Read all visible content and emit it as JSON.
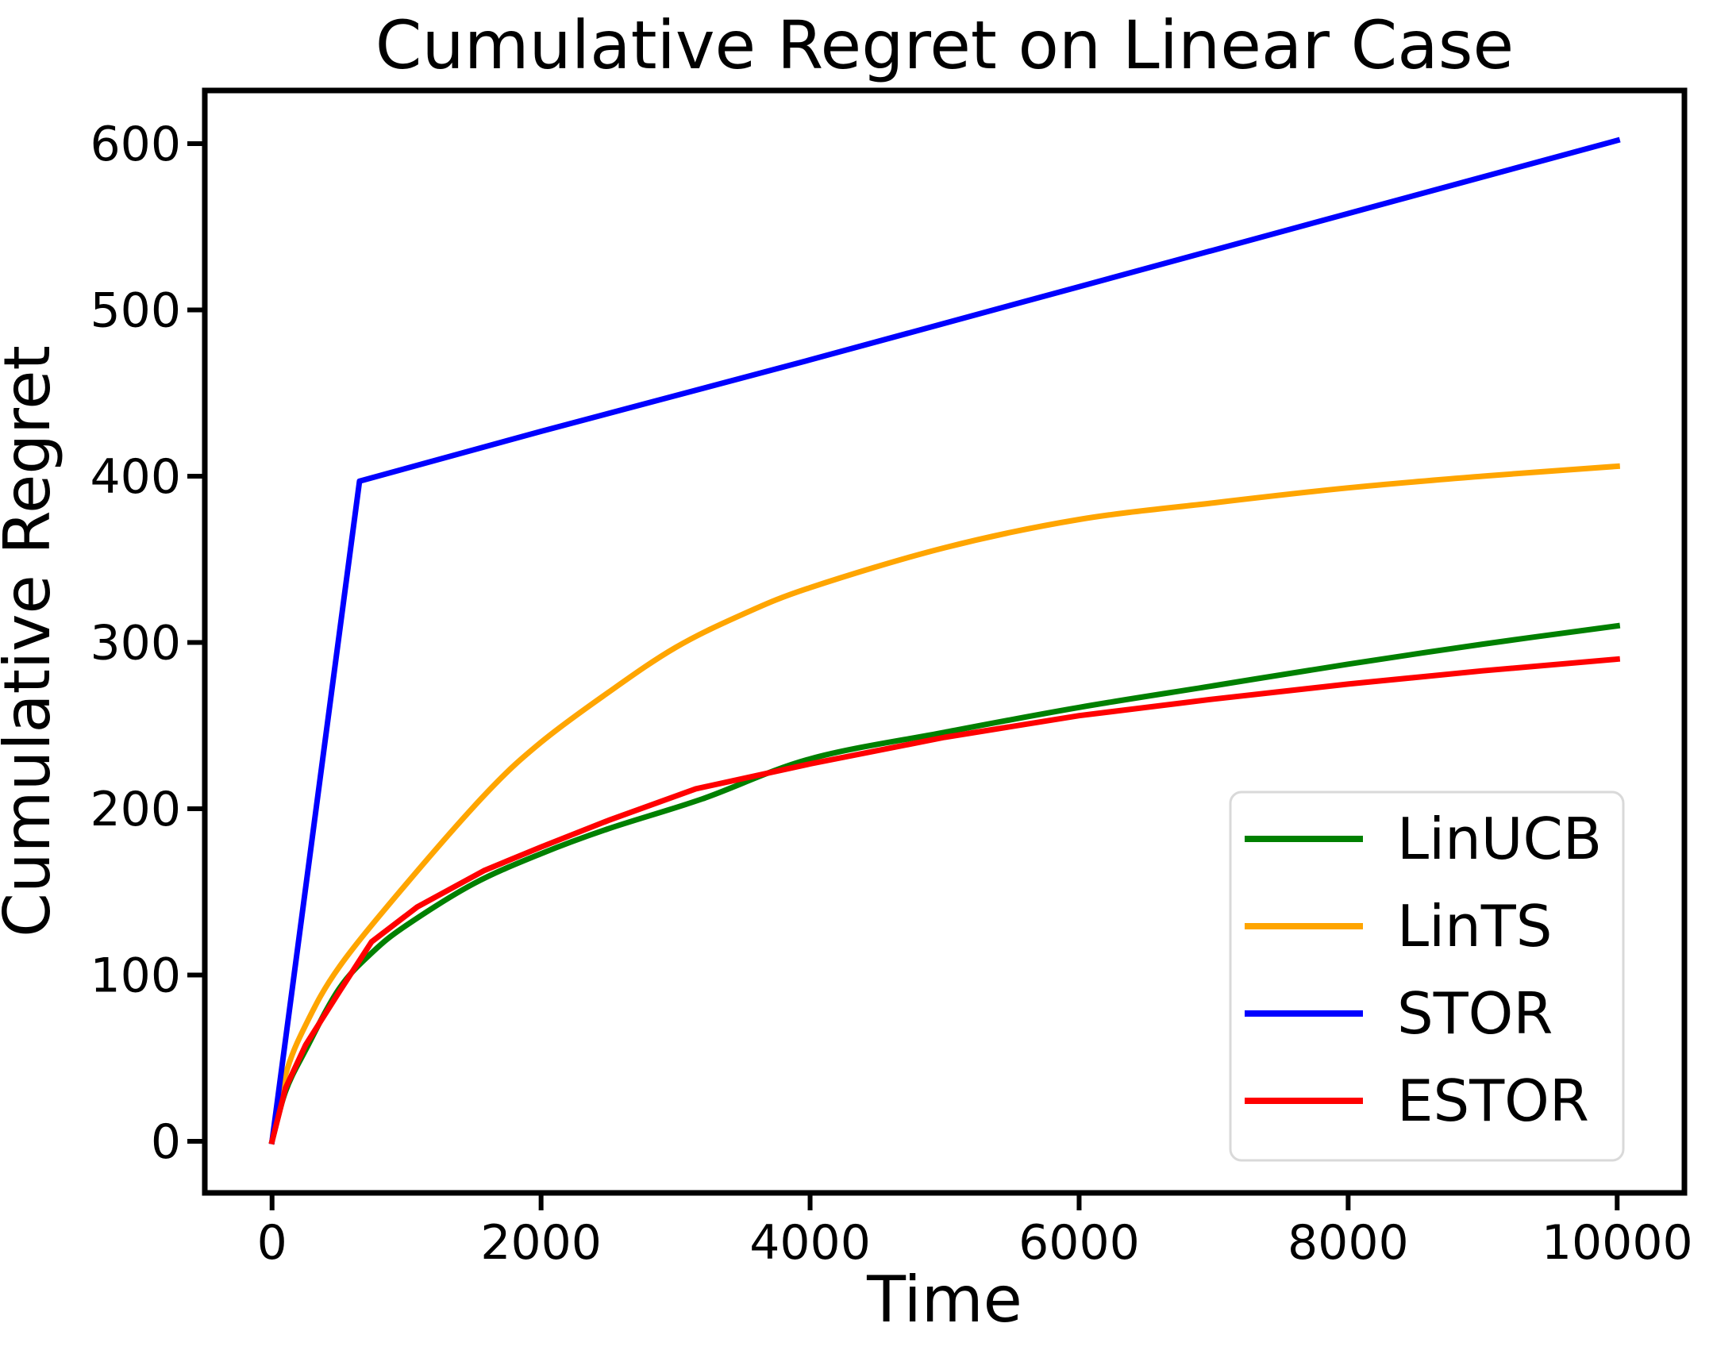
{
  "chart_data": {
    "type": "line",
    "title": "Cumulative Regret on Linear Case",
    "xlabel": "Time",
    "ylabel": "Cumulative Regret",
    "xlim": [
      -500,
      10500
    ],
    "ylim": [
      -31,
      632
    ],
    "x_ticks": [
      0,
      2000,
      4000,
      6000,
      8000,
      10000
    ],
    "y_ticks": [
      0,
      100,
      200,
      300,
      400,
      500,
      600
    ],
    "grid": false,
    "legend_position": "lower right",
    "series": [
      {
        "name": "LinUCB",
        "color": "#008000",
        "smooth": true,
        "points": [
          [
            0,
            0
          ],
          [
            100,
            30
          ],
          [
            250,
            55
          ],
          [
            500,
            92
          ],
          [
            750,
            114
          ],
          [
            1000,
            130
          ],
          [
            1500,
            155
          ],
          [
            2000,
            173
          ],
          [
            2500,
            188
          ],
          [
            3200,
            206
          ],
          [
            4000,
            230
          ],
          [
            5000,
            246
          ],
          [
            6000,
            261
          ],
          [
            7000,
            274
          ],
          [
            8000,
            287
          ],
          [
            9000,
            299
          ],
          [
            10000,
            310
          ]
        ]
      },
      {
        "name": "LinTS",
        "color": "#FFA500",
        "smooth": true,
        "points": [
          [
            0,
            0
          ],
          [
            100,
            40
          ],
          [
            250,
            70
          ],
          [
            500,
            105
          ],
          [
            1000,
            155
          ],
          [
            1600,
            210
          ],
          [
            2000,
            240
          ],
          [
            2500,
            270
          ],
          [
            3000,
            297
          ],
          [
            3500,
            317
          ],
          [
            4000,
            333
          ],
          [
            5000,
            357
          ],
          [
            6000,
            374
          ],
          [
            7000,
            384
          ],
          [
            8000,
            393
          ],
          [
            9000,
            400
          ],
          [
            10000,
            406
          ]
        ]
      },
      {
        "name": "STOR",
        "color": "#0000FF",
        "smooth": false,
        "points": [
          [
            0,
            0
          ],
          [
            650,
            397
          ],
          [
            2000,
            427
          ],
          [
            4000,
            470
          ],
          [
            6000,
            514
          ],
          [
            8000,
            558
          ],
          [
            10000,
            602
          ]
        ]
      },
      {
        "name": "ESTOR",
        "color": "#FF0000",
        "smooth": false,
        "points": [
          [
            0,
            0
          ],
          [
            100,
            32
          ],
          [
            250,
            58
          ],
          [
            500,
            90
          ],
          [
            740,
            120
          ],
          [
            1080,
            141
          ],
          [
            1580,
            163
          ],
          [
            2000,
            177
          ],
          [
            2500,
            193
          ],
          [
            3150,
            212
          ],
          [
            4000,
            227
          ],
          [
            5000,
            243
          ],
          [
            6000,
            256
          ],
          [
            7000,
            266
          ],
          [
            8000,
            275
          ],
          [
            9000,
            283
          ],
          [
            10000,
            290
          ]
        ]
      }
    ]
  },
  "colors": {
    "axis": "#000000",
    "tick": "#000000",
    "legend_border": "#d9d9d9",
    "legend_background": "#ffffff",
    "background": "#ffffff"
  }
}
